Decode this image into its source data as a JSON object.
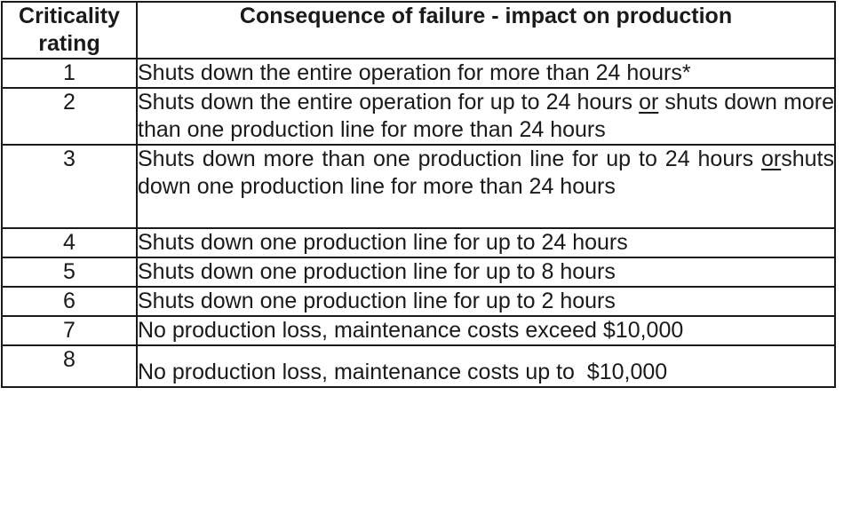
{
  "header": {
    "rating": "Criticality rating",
    "consequence": "Consequence of failure - impact on production"
  },
  "rows": [
    {
      "rating": "1",
      "text_a": "Shuts down the entire operation for more than 24 hours*"
    },
    {
      "rating": "2",
      "text_a": "Shuts down the entire operation for up to 24 hours ",
      "conj": "or",
      "text_b": " shuts down more than one production line for more than 24 hours"
    },
    {
      "rating": "3",
      "text_a": "Shuts down more than one production line for up to 24 hours ",
      "conj": "or",
      "text_b": "shuts down one production line for more than 24 hours"
    },
    {
      "rating": "4",
      "text_a": "Shuts down one production line for up to 24 hours"
    },
    {
      "rating": "5",
      "text_a": "Shuts down one production line for up to 8 hours"
    },
    {
      "rating": "6",
      "text_a": "Shuts down one production line for up to 2 hours"
    },
    {
      "rating": "7",
      "text_a": "No production loss, maintenance costs exceed $10,000"
    },
    {
      "rating": "8",
      "text_a": "No production loss, maintenance costs up to  $10,000"
    }
  ]
}
